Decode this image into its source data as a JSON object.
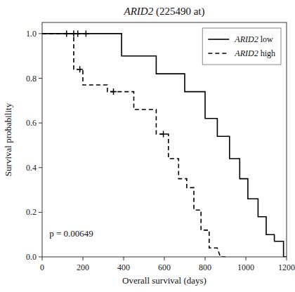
{
  "chart_data": {
    "type": "line",
    "title": "ARID2 (225490 at)",
    "x_label": "Overall survival (days)",
    "y_label": "Survival probability",
    "xlim": [
      0,
      1200
    ],
    "ylim": [
      0.0,
      1.05
    ],
    "xticks": [
      0,
      200,
      400,
      600,
      800,
      1000,
      1200
    ],
    "yticks": [
      {
        "value": 0.0,
        "label": "0.0"
      },
      0.2,
      0.4,
      0.6,
      0.8,
      {
        "value": 1.0,
        "label": "1.0"
      }
    ],
    "legend": "upper right",
    "grid": false,
    "series": [
      {
        "name": "ARID2 low",
        "type": "line",
        "line_style": "solid",
        "color": "#000000",
        "x": [
          0,
          390,
          390,
          560,
          560,
          700,
          700,
          800,
          800,
          860,
          860,
          920,
          920,
          970,
          970,
          1010,
          1010,
          1060,
          1060,
          1100,
          1100,
          1140,
          1140,
          1185,
          1185,
          1200
        ],
        "values": [
          1.0,
          1.0,
          0.9,
          0.9,
          0.82,
          0.82,
          0.74,
          0.74,
          0.62,
          0.62,
          0.54,
          0.54,
          0.44,
          0.44,
          0.35,
          0.35,
          0.26,
          0.26,
          0.18,
          0.18,
          0.1,
          0.1,
          0.07,
          0.07,
          0.0,
          0.0
        ]
      },
      {
        "name": "ARID2 high",
        "type": "line",
        "line_style": "dashed",
        "color": "#000000",
        "x": [
          0,
          155,
          155,
          200,
          200,
          320,
          320,
          450,
          450,
          560,
          560,
          620,
          620,
          670,
          670,
          710,
          710,
          745,
          745,
          780,
          780,
          820,
          820,
          860,
          860,
          875,
          875,
          900
        ],
        "values": [
          1.0,
          1.0,
          0.84,
          0.84,
          0.77,
          0.77,
          0.74,
          0.74,
          0.66,
          0.66,
          0.55,
          0.55,
          0.44,
          0.44,
          0.35,
          0.35,
          0.31,
          0.31,
          0.21,
          0.21,
          0.12,
          0.12,
          0.04,
          0.04,
          0.04,
          0.0,
          0.0,
          0.0
        ]
      },
      {
        "type": "scatter",
        "marker": "plus",
        "color": "#000000",
        "x": [
          120,
          155,
          175,
          215
        ],
        "values": [
          1.0,
          1.0,
          1.0,
          1.0
        ]
      },
      {
        "type": "scatter",
        "marker": "plus",
        "color": "#000000",
        "x": [
          185,
          350,
          595
        ],
        "values": [
          0.84,
          0.74,
          0.55
        ]
      }
    ],
    "annotations": [
      {
        "text": "p = 0.00649",
        "x": 35,
        "y": 0.09
      }
    ]
  }
}
